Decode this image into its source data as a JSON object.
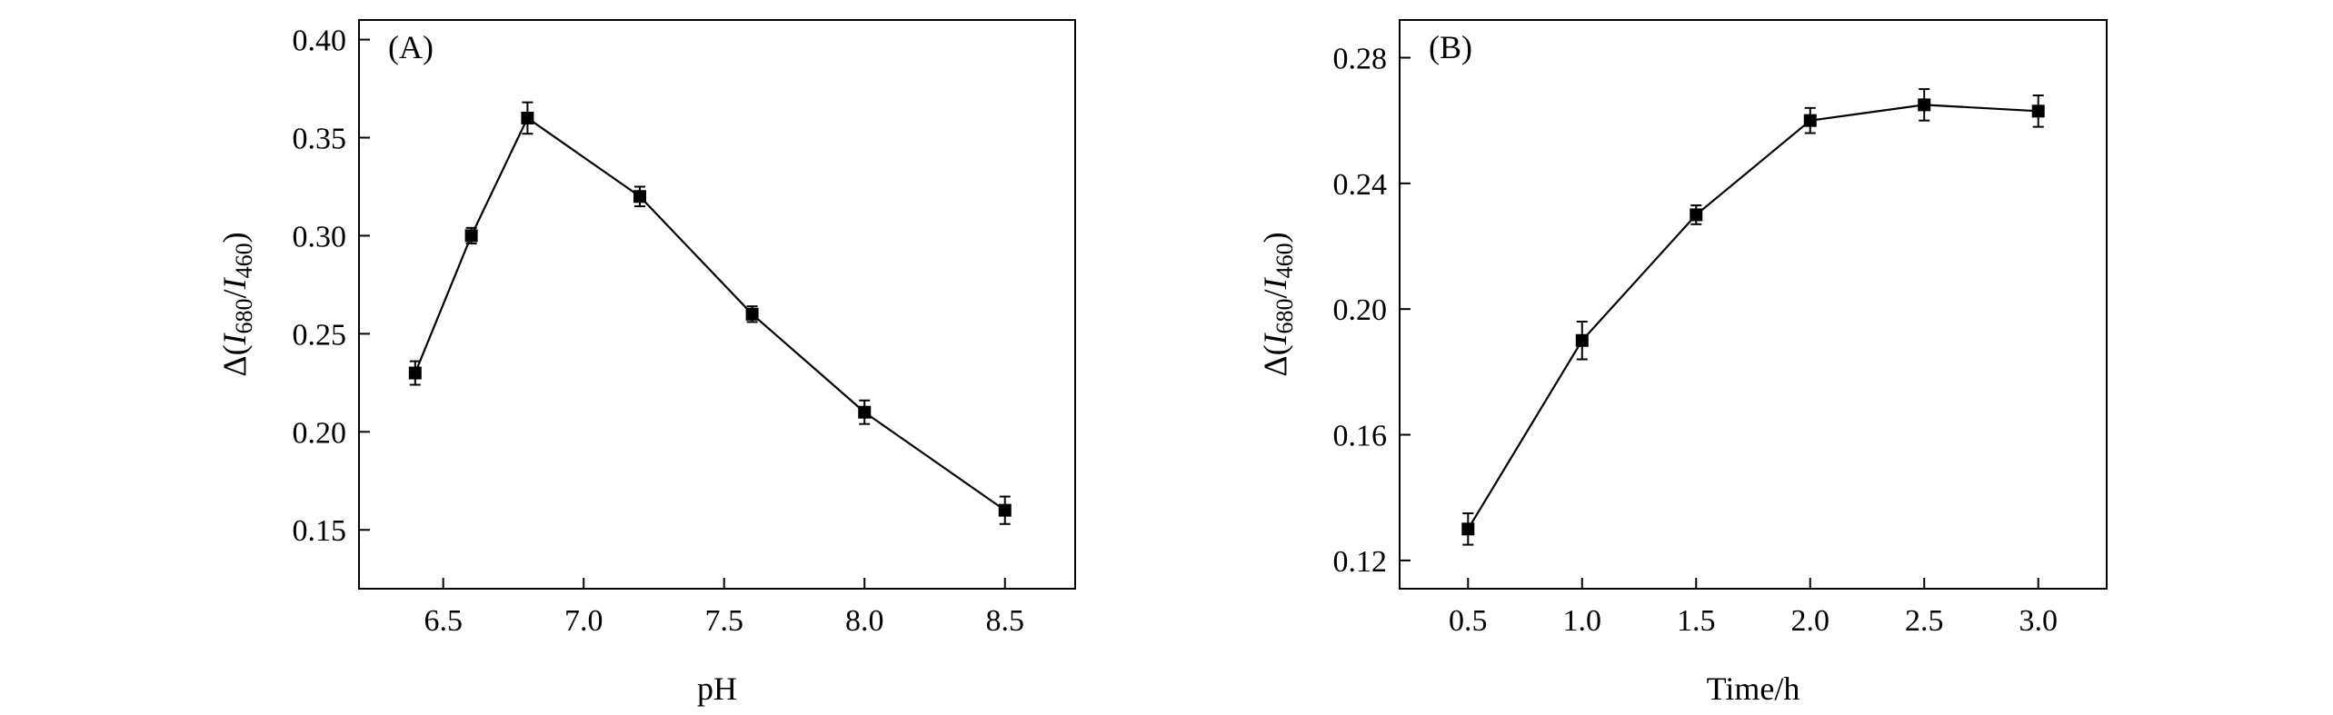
{
  "chart_data": [
    {
      "type": "line",
      "panel_label": "(A)",
      "xlabel": "pH",
      "ylabel": {
        "prefix": "Δ(",
        "i1": "I",
        "s1": "680",
        "slash": "/",
        "i2": "I",
        "s2": "460",
        "suffix": ")"
      },
      "xlim": [
        6.2,
        8.75
      ],
      "ylim": [
        0.12,
        0.41
      ],
      "xticks": [
        6.5,
        7.0,
        7.5,
        8.0,
        8.5
      ],
      "xtick_labels": [
        "6.5",
        "7.0",
        "7.5",
        "8.0",
        "8.5"
      ],
      "yticks": [
        0.15,
        0.2,
        0.25,
        0.3,
        0.35,
        0.4
      ],
      "ytick_labels": [
        "0.15",
        "0.20",
        "0.25",
        "0.30",
        "0.35",
        "0.40"
      ],
      "x": [
        6.4,
        6.6,
        6.8,
        7.2,
        7.6,
        8.0,
        8.5
      ],
      "y": [
        0.23,
        0.3,
        0.36,
        0.32,
        0.26,
        0.21,
        0.16
      ],
      "yerr": [
        0.006,
        0.004,
        0.008,
        0.005,
        0.004,
        0.006,
        0.007
      ],
      "grid": false,
      "marker": "square",
      "color": "#000000"
    },
    {
      "type": "line",
      "panel_label": "(B)",
      "xlabel": "Time/h",
      "ylabel": {
        "prefix": "Δ(",
        "i1": "I",
        "s1": "680",
        "slash": "/",
        "i2": "I",
        "s2": "460",
        "suffix": ")"
      },
      "xlim": [
        0.2,
        3.3
      ],
      "ylim": [
        0.111,
        0.292
      ],
      "xticks": [
        0.5,
        1.0,
        1.5,
        2.0,
        2.5,
        3.0
      ],
      "xtick_labels": [
        "0.5",
        "1.0",
        "1.5",
        "2.0",
        "2.5",
        "3.0"
      ],
      "yticks": [
        0.12,
        0.16,
        0.2,
        0.24,
        0.28
      ],
      "ytick_labels": [
        "0.12",
        "0.16",
        "0.20",
        "0.24",
        "0.28"
      ],
      "x": [
        0.5,
        1.0,
        1.5,
        2.0,
        2.5,
        3.0
      ],
      "y": [
        0.13,
        0.19,
        0.23,
        0.26,
        0.265,
        0.263
      ],
      "yerr": [
        0.005,
        0.006,
        0.003,
        0.004,
        0.005,
        0.005
      ],
      "grid": false,
      "marker": "square",
      "color": "#000000"
    }
  ]
}
